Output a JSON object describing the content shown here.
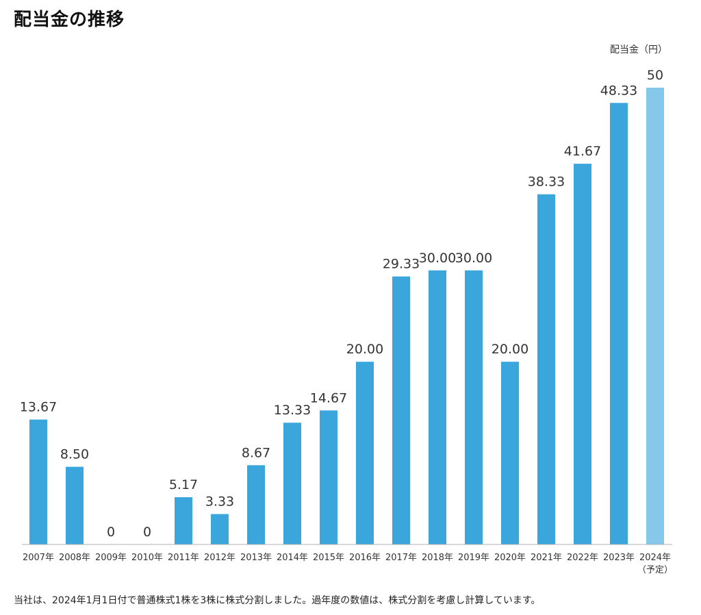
{
  "page": {
    "title": "配当金の推移",
    "footnote": "当社は、2024年1月1日付で普通株式1株を3株に株式分割しました。過年度の数値は、株式分割を考慮し計算しています。"
  },
  "chart_data": {
    "type": "bar",
    "title": "配当金の推移",
    "unit_label": "配当金（円）",
    "xlabel": "",
    "ylabel": "配当金（円）",
    "ylim": [
      0,
      52
    ],
    "grid": false,
    "legend": "none",
    "categories": [
      "2007年",
      "2008年",
      "2009年",
      "2010年",
      "2011年",
      "2012年",
      "2013年",
      "2014年",
      "2015年",
      "2016年",
      "2017年",
      "2018年",
      "2019年",
      "2020年",
      "2021年",
      "2022年",
      "2023年",
      "2024年"
    ],
    "category_sublabels": [
      "",
      "",
      "",
      "",
      "",
      "",
      "",
      "",
      "",
      "",
      "",
      "",
      "",
      "",
      "",
      "",
      "",
      "（予定）"
    ],
    "values": [
      13.67,
      8.5,
      0,
      0,
      5.17,
      3.33,
      8.67,
      13.33,
      14.67,
      20.0,
      29.33,
      30.0,
      30.0,
      20.0,
      38.33,
      41.67,
      48.33,
      50
    ],
    "value_labels": [
      "13.67",
      "8.50",
      "0",
      "0",
      "5.17",
      "3.33",
      "8.67",
      "13.33",
      "14.67",
      "20.00",
      "29.33",
      "30.00",
      "30.00",
      "20.00",
      "38.33",
      "41.67",
      "48.33",
      "50"
    ],
    "colors": {
      "actual": "#3aa6dc",
      "planned": "#86c8ea",
      "axis": "#b0b0b0",
      "label_text": "#333333",
      "tick_text": "#333333"
    },
    "planned_index": 17
  }
}
